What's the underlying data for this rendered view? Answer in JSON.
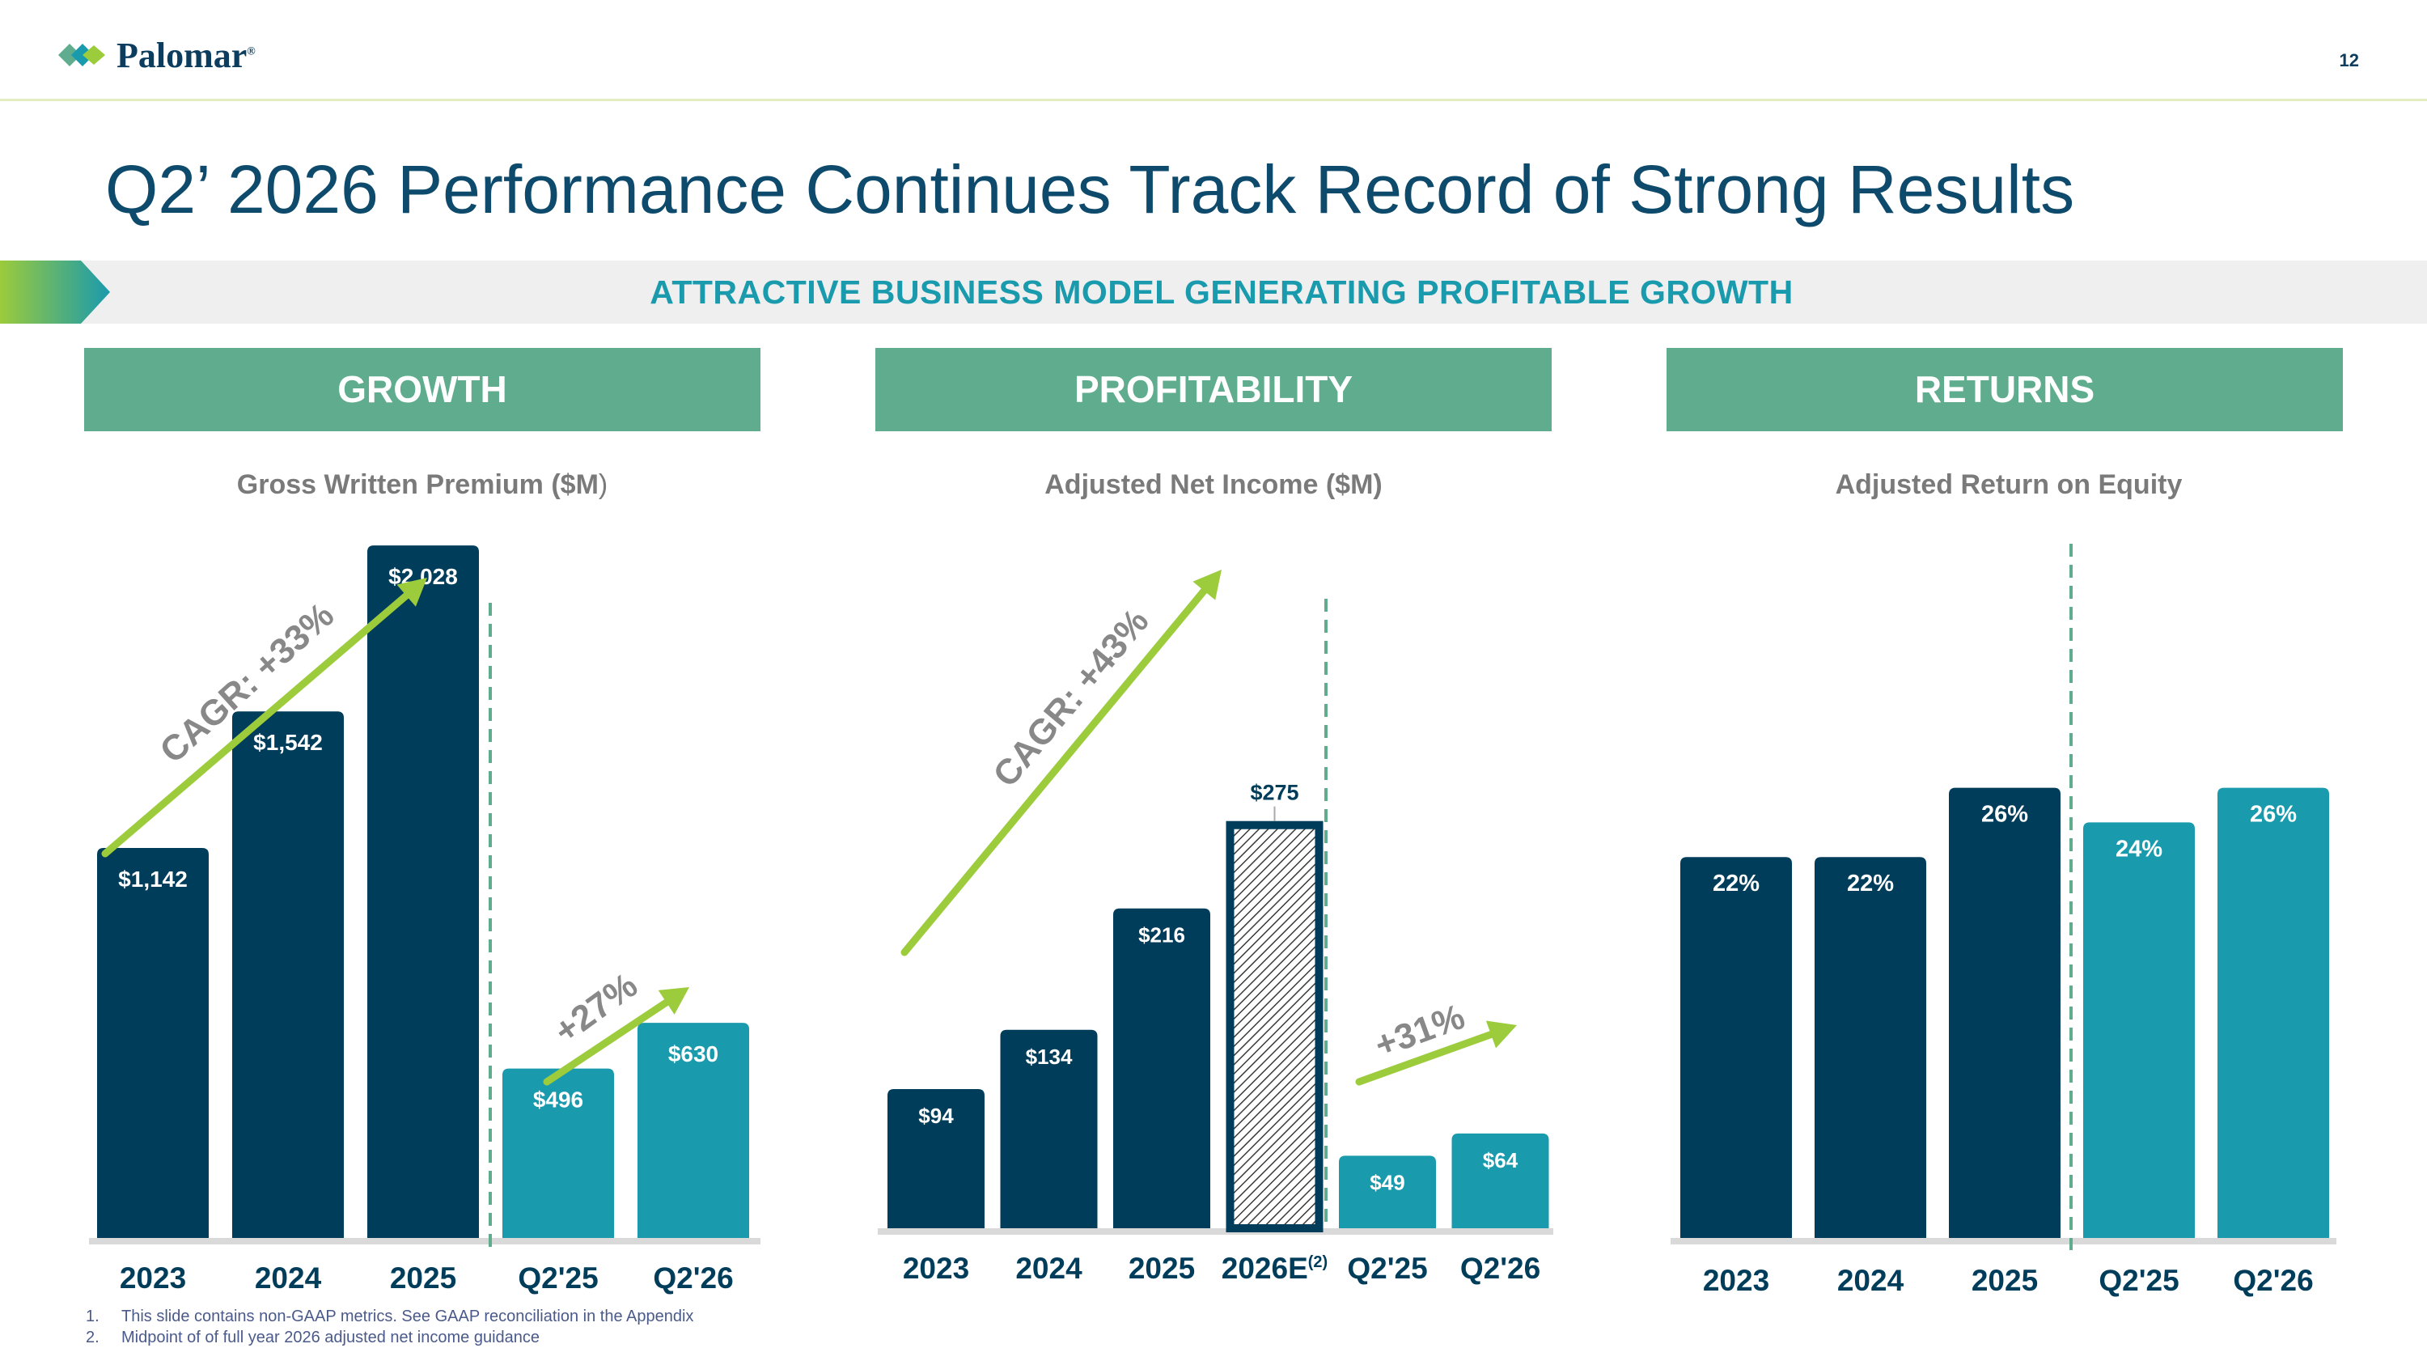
{
  "header": {
    "logo_text": "Palomar",
    "logo_mark": "®",
    "page_number": "12"
  },
  "title": "Q2’ 2026 Performance Continues Track Record of Strong Results",
  "banner": "ATTRACTIVE BUSINESS MODEL GENERATING PROFITABLE GROWTH",
  "colors": {
    "navy": "#003d5b",
    "teal": "#1a9aad",
    "green_header": "#5fad8e",
    "lime": "#9ccb3b"
  },
  "panels": [
    {
      "header": "GROWTH",
      "chart_title_main": "Gross Written Premium ($M",
      "chart_title_end": ")"
    },
    {
      "header": "PROFITABILITY",
      "chart_title": "Adjusted Net Income ($M)"
    },
    {
      "header": "RETURNS",
      "chart_title": "Adjusted Return on Equity"
    }
  ],
  "chart_data": [
    {
      "type": "bar",
      "title": "Gross Written Premium ($M)",
      "categories": [
        "2023",
        "2024",
        "2025",
        "Q2'25",
        "Q2'26"
      ],
      "values": [
        1142,
        1542,
        2028,
        496,
        630
      ],
      "labels": [
        "$1,142",
        "$1,542",
        "$2,028",
        "$496",
        "$630"
      ],
      "ylim": [
        0,
        2450
      ],
      "annotations": [
        "CAGR: +33%",
        "+27%"
      ]
    },
    {
      "type": "bar",
      "title": "Adjusted Net Income ($M)",
      "categories": [
        "2023",
        "2024",
        "2025",
        "2026E",
        "Q2'25",
        "Q2'26"
      ],
      "values": [
        94,
        134,
        216,
        275,
        49,
        64
      ],
      "labels": [
        "$94",
        "$134",
        "$216",
        "$275",
        "$49",
        "$64"
      ],
      "estimate_index": 3,
      "estimate_footnote_mark": "(2)",
      "ylim": [
        0,
        306
      ],
      "annotations": [
        "CAGR: +43%",
        "+31%"
      ]
    },
    {
      "type": "bar",
      "title": "Adjusted Return on Equity",
      "categories": [
        "2023",
        "2024",
        "2025",
        "Q2'25",
        "Q2'26"
      ],
      "values": [
        22,
        22,
        26,
        24,
        26
      ],
      "labels": [
        "22%",
        "22%",
        "26%",
        "24%",
        "26%"
      ],
      "ylim": [
        0,
        50
      ]
    }
  ],
  "footnotes": [
    {
      "num": "1.",
      "text": "This slide contains non-GAAP metrics. See GAAP reconciliation in the Appendix"
    },
    {
      "num": "2.",
      "text": "Midpoint of of full year 2026 adjusted net income guidance"
    }
  ]
}
